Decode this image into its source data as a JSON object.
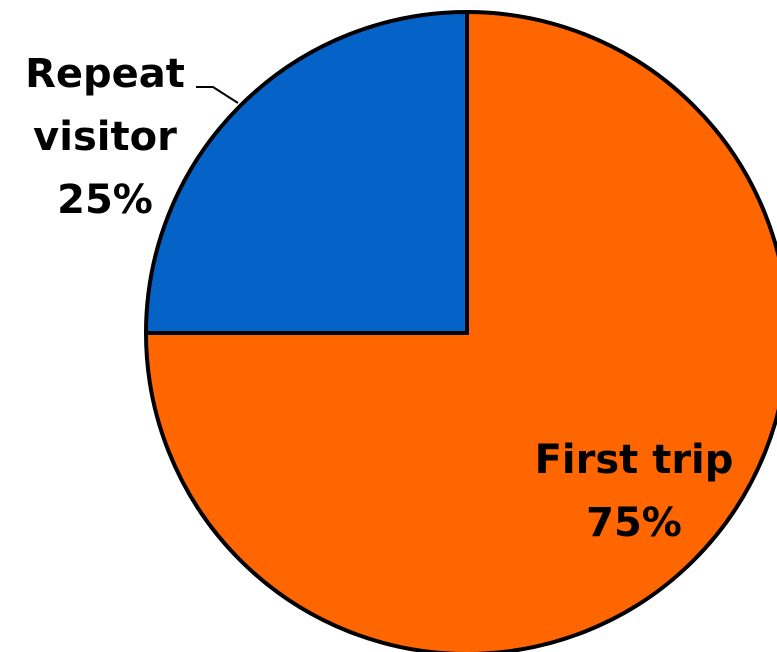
{
  "chart_data": {
    "type": "pie",
    "title": "",
    "slices": [
      {
        "label_lines": [
          "Repeat",
          "visitor"
        ],
        "percent_label": "25%",
        "value": 25,
        "color": "#0563C8"
      },
      {
        "label_lines": [
          "First trip"
        ],
        "percent_label": "75%",
        "value": 75,
        "color": "#FF6600"
      }
    ],
    "start_angle": "12 o'clock",
    "direction": "counterclockwise for first slice",
    "outline_color": "#000000"
  }
}
